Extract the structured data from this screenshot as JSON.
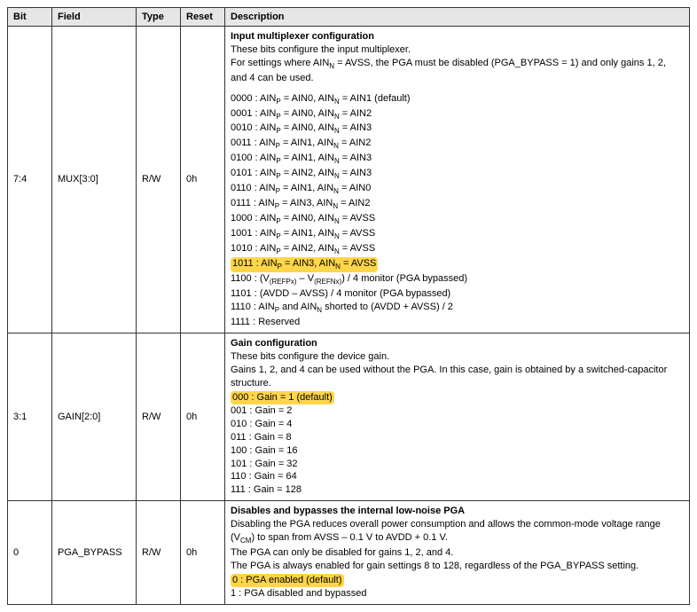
{
  "headers": {
    "bit": "Bit",
    "field": "Field",
    "type": "Type",
    "reset": "Reset",
    "desc": "Description"
  },
  "rows": [
    {
      "bit": "7:4",
      "field": "MUX[3:0]",
      "type": "R/W",
      "reset": "0h",
      "title": "Input multiplexer configuration",
      "intro_lines": [
        "These bits configure the input multiplexer.",
        "For settings where AIN<sub>N</sub> = AVSS, the PGA must be disabled (PGA_BYPASS = 1) and only gains 1, 2, and 4 can be used."
      ],
      "options": [
        {
          "text": "0000 : AIN<sub>P</sub> = AIN0, AIN<sub>N</sub> = AIN1 (default)",
          "highlight": false
        },
        {
          "text": "0001 : AIN<sub>P</sub> = AIN0, AIN<sub>N</sub> = AIN2",
          "highlight": false
        },
        {
          "text": "0010 : AIN<sub>P</sub> = AIN0, AIN<sub>N</sub> = AIN3",
          "highlight": false
        },
        {
          "text": "0011 : AIN<sub>P</sub> = AIN1, AIN<sub>N</sub> = AIN2",
          "highlight": false
        },
        {
          "text": "0100 : AIN<sub>P</sub> = AIN1, AIN<sub>N</sub> = AIN3",
          "highlight": false
        },
        {
          "text": "0101 : AIN<sub>P</sub> = AIN2, AIN<sub>N</sub> = AIN3",
          "highlight": false
        },
        {
          "text": "0110 : AIN<sub>P</sub> = AIN1, AIN<sub>N</sub> = AIN0",
          "highlight": false
        },
        {
          "text": "0111 : AIN<sub>P</sub> = AIN3, AIN<sub>N</sub> = AIN2",
          "highlight": false
        },
        {
          "text": "1000 : AIN<sub>P</sub> = AIN0, AIN<sub>N</sub> = AVSS",
          "highlight": false
        },
        {
          "text": "1001 : AIN<sub>P</sub> = AIN1, AIN<sub>N</sub> = AVSS",
          "highlight": false
        },
        {
          "text": "1010 : AIN<sub>P</sub> = AIN2, AIN<sub>N</sub> = AVSS",
          "highlight": false
        },
        {
          "text": "1011 : AIN<sub>P</sub> = AIN3, AIN<sub>N</sub> = AVSS",
          "highlight": true
        },
        {
          "text": "1100 : (V<sub>(REFPx)</sub> – V<sub>(REFNx)</sub>) / 4 monitor (PGA bypassed)",
          "highlight": false
        },
        {
          "text": "1101 : (AVDD – AVSS) / 4 monitor (PGA bypassed)",
          "highlight": false
        },
        {
          "text": "1110 : AIN<sub>P</sub> and AIN<sub>N</sub> shorted to (AVDD + AVSS) / 2",
          "highlight": false
        },
        {
          "text": "1111 : Reserved",
          "highlight": false
        }
      ]
    },
    {
      "bit": "3:1",
      "field": "GAIN[2:0]",
      "type": "R/W",
      "reset": "0h",
      "title": "Gain configuration",
      "intro_lines": [
        "These bits configure the device gain.",
        "Gains 1, 2, and 4 can be used without the PGA. In this case, gain is obtained by a switched-capacitor structure."
      ],
      "options": [
        {
          "text": "000 : Gain = 1 (default)",
          "highlight": true
        },
        {
          "text": "001 : Gain = 2",
          "highlight": false
        },
        {
          "text": "010 : Gain = 4",
          "highlight": false
        },
        {
          "text": "011 : Gain = 8",
          "highlight": false
        },
        {
          "text": "100 : Gain = 16",
          "highlight": false
        },
        {
          "text": "101 : Gain = 32",
          "highlight": false
        },
        {
          "text": "110 : Gain = 64",
          "highlight": false
        },
        {
          "text": "111 : Gain = 128",
          "highlight": false
        }
      ]
    },
    {
      "bit": "0",
      "field": "PGA_BYPASS",
      "type": "R/W",
      "reset": "0h",
      "title": "Disables and bypasses the internal low-noise PGA",
      "intro_lines": [
        "Disabling the PGA reduces overall power consumption and allows the common-mode voltage range (V<sub>CM</sub>) to span from AVSS – 0.1 V to AVDD + 0.1 V.",
        "The PGA can only be disabled for gains 1, 2, and 4.",
        "The PGA is always enabled for gain settings 8 to 128, regardless of the PGA_BYPASS setting."
      ],
      "options": [
        {
          "text": "0 : PGA enabled (default)",
          "highlight": true
        },
        {
          "text": "1 : PGA disabled and bypassed",
          "highlight": false
        }
      ]
    }
  ]
}
